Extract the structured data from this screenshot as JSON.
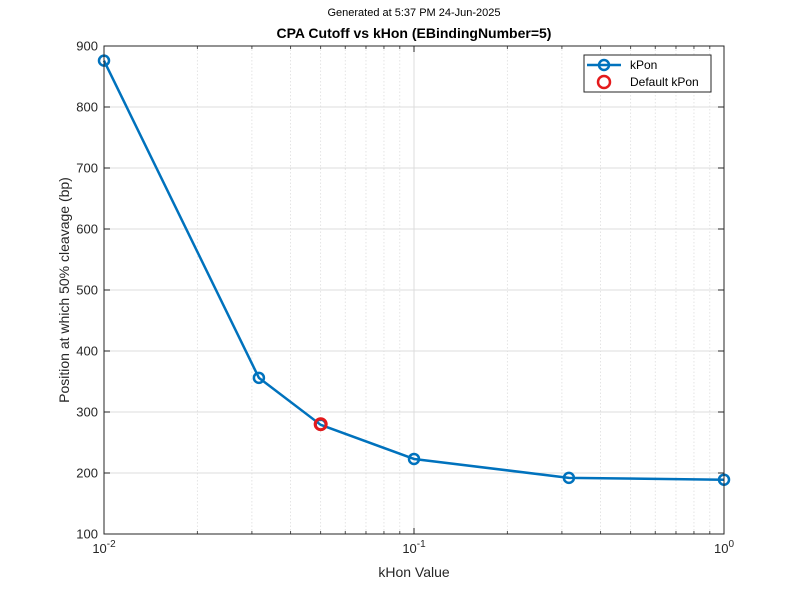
{
  "chart_data": {
    "type": "line",
    "subtitle": "Generated at  5:37 PM 24-Jun-2025",
    "title": "CPA Cutoff vs kHon (EBindingNumber=5)",
    "xlabel": "kHon Value",
    "ylabel": "Position at which 50% cleavage (bp)",
    "xscale": "log",
    "xlim": [
      0.01,
      1
    ],
    "ylim": [
      100,
      900
    ],
    "x_ticks": [
      {
        "value": 0.01,
        "base": "10",
        "exp": "-2"
      },
      {
        "value": 0.1,
        "base": "10",
        "exp": "-1"
      },
      {
        "value": 1,
        "base": "10",
        "exp": "0"
      }
    ],
    "y_ticks": [
      100,
      200,
      300,
      400,
      500,
      600,
      700,
      800,
      900
    ],
    "grid": true,
    "minor_grid": true,
    "legend_position": "top-right",
    "series": [
      {
        "name": "kPon",
        "color": "#0072BD",
        "marker": "circle",
        "x": [
          0.01,
          0.0316,
          0.05,
          0.1,
          0.316,
          1
        ],
        "y": [
          876,
          356,
          279,
          223,
          192,
          189
        ]
      },
      {
        "name": "Default kPon",
        "color": "#E41A1C",
        "marker": "circle",
        "line": false,
        "x": [
          0.05
        ],
        "y": [
          280
        ]
      }
    ]
  }
}
